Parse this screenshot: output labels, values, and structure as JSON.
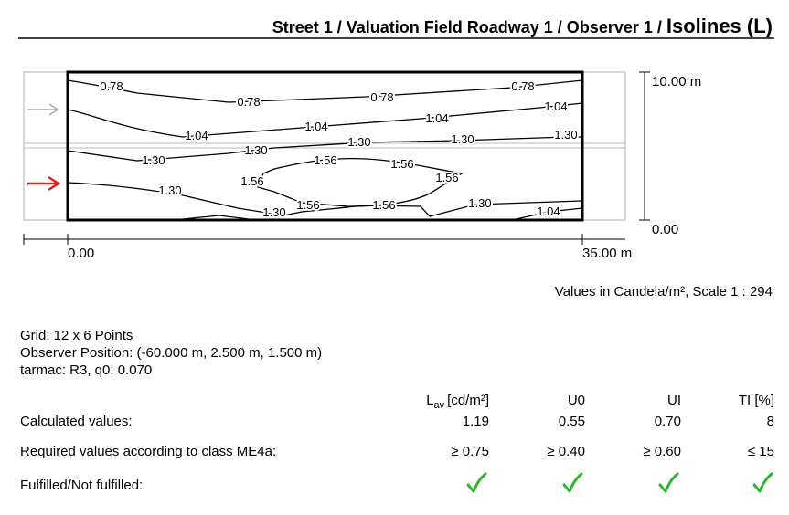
{
  "header": {
    "title_main": "Street 1 / Valuation Field Roadway 1 / Observer 1 /",
    "title_suffix": "Isolines (L)"
  },
  "diagram": {
    "y_top": "10.00 m",
    "y_bottom": "0.00",
    "x_left": "0.00",
    "x_right": "35.00 m",
    "isoline_labels": [
      "0.78",
      "0.78",
      "0.78",
      "0.78",
      "1.04",
      "1.04",
      "1.04",
      "1.04",
      "1.30",
      "1.30",
      "1.30",
      "1.30",
      "1.30",
      "1.56",
      "1.56",
      "1.56",
      "1.56",
      "1.30",
      "1.56",
      "1.56",
      "1.30",
      "1.30",
      "1.04"
    ]
  },
  "units_note": "Values in Candela/m², Scale 1 : 294",
  "info": [
    "Grid: 12 x 6 Points",
    "Observer Position: (-60.000 m, 2.500 m, 1.500 m)",
    "tarmac: R3, q0: 0.070"
  ],
  "table": {
    "headers": [
      {
        "main": "L",
        "sub": "av",
        "unit": "[cd/m²]"
      },
      "U0",
      "UI",
      "TI [%]"
    ],
    "rows": [
      {
        "label": "Calculated values:",
        "cells": [
          "1.19",
          "0.55",
          "0.70",
          "8"
        ]
      },
      {
        "label": "Required values according to class ME4a:",
        "cells": [
          "≥ 0.75",
          "≥ 0.40",
          "≥ 0.60",
          "≤ 15"
        ]
      },
      {
        "label": "Fulfilled/Not fulfilled:"
      }
    ]
  }
}
